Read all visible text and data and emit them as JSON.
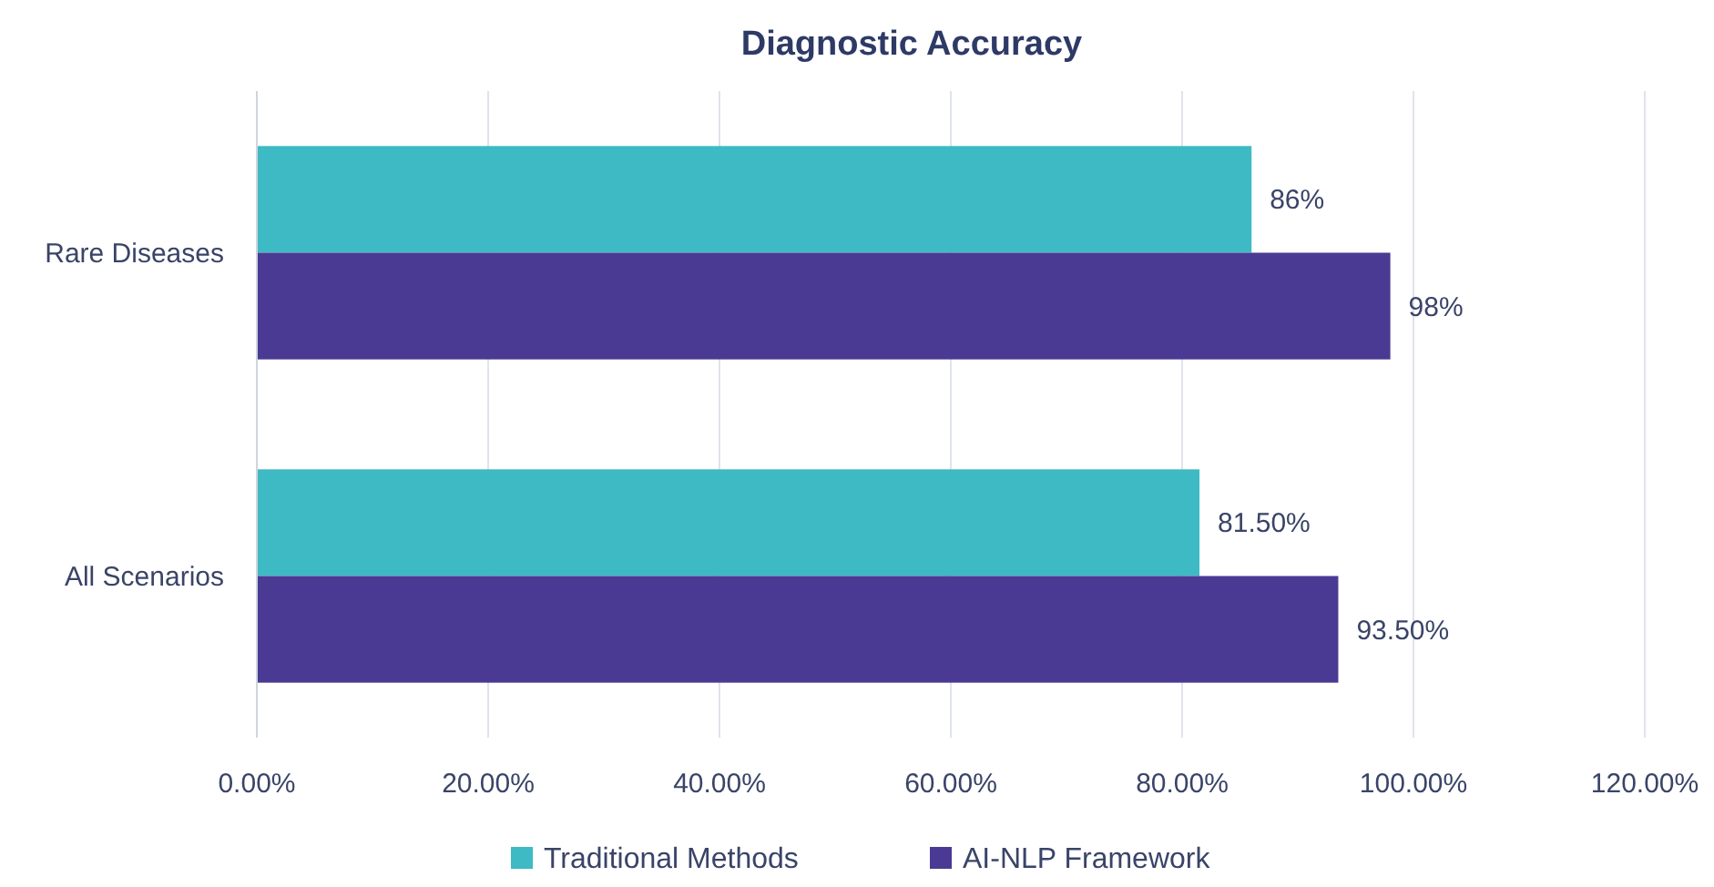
{
  "chart_data": {
    "type": "bar",
    "orientation": "horizontal",
    "title": "Diagnostic Accuracy",
    "categories": [
      "Rare Diseases",
      "All Scenarios"
    ],
    "series": [
      {
        "name": "Traditional Methods",
        "color": "#3dbac3",
        "values": [
          86,
          81.5
        ],
        "value_labels": [
          "86%",
          "81.50%"
        ]
      },
      {
        "name": "AI-NLP Framework",
        "color": "#4a3a94",
        "values": [
          98,
          93.5
        ],
        "value_labels": [
          "98%",
          "93.50%"
        ]
      }
    ],
    "xlim": [
      0,
      120
    ],
    "xticks": [
      {
        "value": 0,
        "label": "0.00%"
      },
      {
        "value": 20,
        "label": "20.00%"
      },
      {
        "value": 40,
        "label": "40.00%"
      },
      {
        "value": 60,
        "label": "60.00%"
      },
      {
        "value": 80,
        "label": "80.00%"
      },
      {
        "value": 100,
        "label": "100.00%"
      },
      {
        "value": 120,
        "label": "120.00%"
      }
    ],
    "grid": "x",
    "legend": "bottom"
  }
}
